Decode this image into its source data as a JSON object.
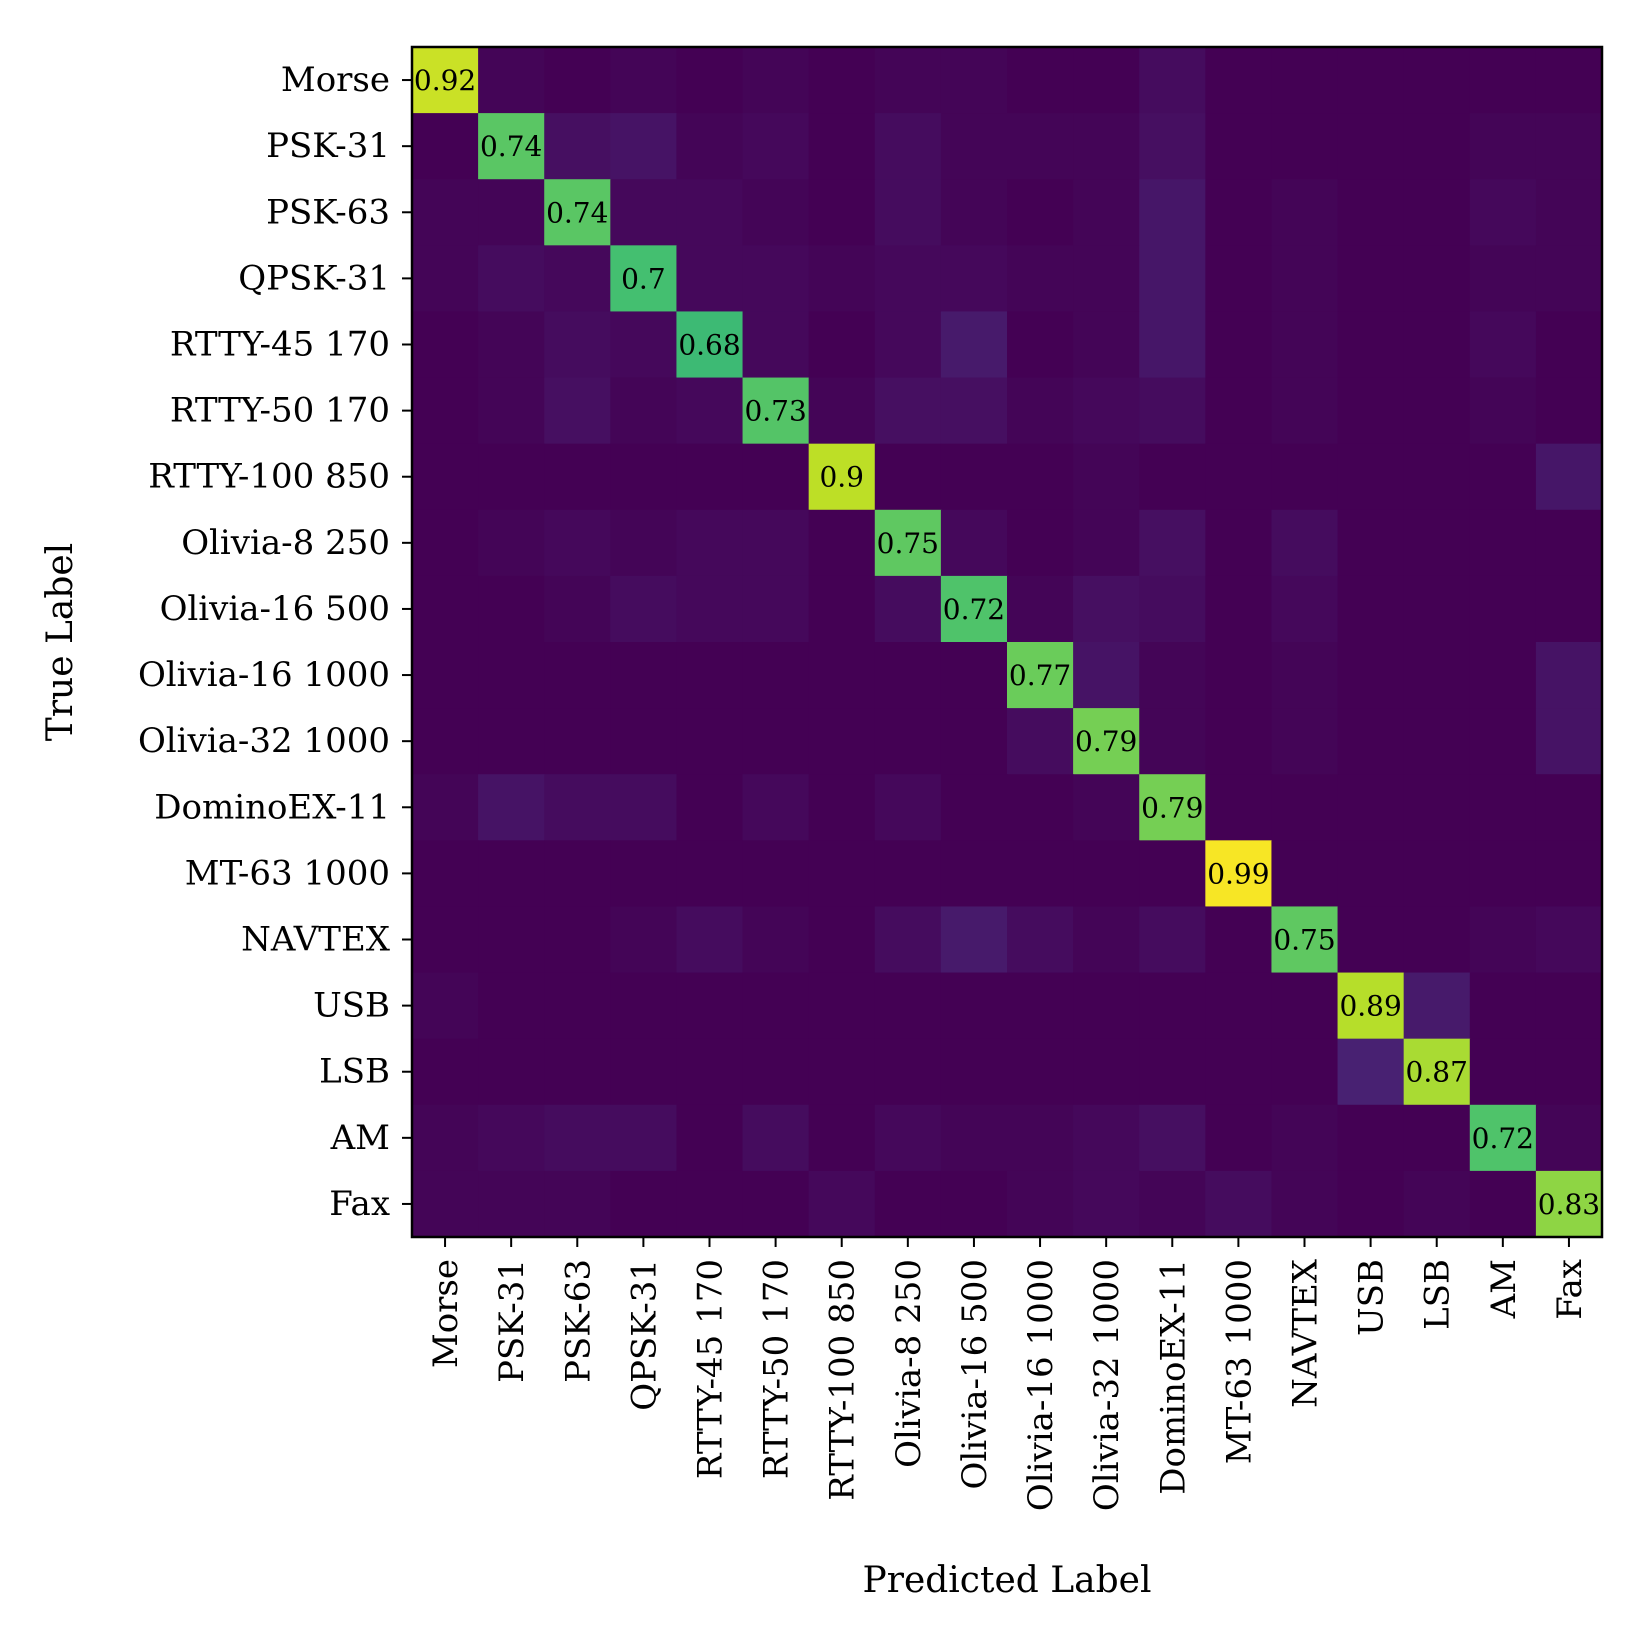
{
  "chart_data": {
    "type": "heatmap",
    "xlabel": "Predicted Label",
    "ylabel": "True Label",
    "colormap": "viridis",
    "vmin": 0,
    "vmax": 1,
    "classes": [
      "Morse",
      "PSK-31",
      "PSK-63",
      "QPSK-31",
      "RTTY-45 170",
      "RTTY-50 170",
      "RTTY-100 850",
      "Olivia-8 250",
      "Olivia-16 500",
      "Olivia-16 1000",
      "Olivia-32 1000",
      "DominoEX-11",
      "MT-63 1000",
      "NAVTEX",
      "USB",
      "LSB",
      "AM",
      "Fax"
    ],
    "diagonal_labels": [
      "0.92",
      "0.74",
      "0.74",
      "0.7",
      "0.68",
      "0.73",
      "0.9",
      "0.75",
      "0.72",
      "0.77",
      "0.79",
      "0.79",
      "0.99",
      "0.75",
      "0.89",
      "0.87",
      "0.72",
      "0.83"
    ],
    "matrix": [
      [
        0.92,
        0.01,
        0.0,
        0.01,
        0.0,
        0.01,
        0.0,
        0.01,
        0.01,
        0.0,
        0.0,
        0.03,
        0.0,
        0.0,
        0.0,
        0.0,
        0.0,
        0.0
      ],
      [
        0.0,
        0.74,
        0.04,
        0.05,
        0.01,
        0.02,
        0.0,
        0.03,
        0.01,
        0.01,
        0.01,
        0.04,
        0.0,
        0.0,
        0.0,
        0.0,
        0.01,
        0.01
      ],
      [
        0.01,
        0.01,
        0.74,
        0.02,
        0.02,
        0.01,
        0.0,
        0.03,
        0.01,
        0.0,
        0.01,
        0.06,
        0.0,
        0.01,
        0.0,
        0.0,
        0.02,
        0.01
      ],
      [
        0.01,
        0.03,
        0.02,
        0.7,
        0.02,
        0.02,
        0.01,
        0.02,
        0.02,
        0.01,
        0.01,
        0.06,
        0.0,
        0.01,
        0.0,
        0.0,
        0.01,
        0.01
      ],
      [
        0.0,
        0.01,
        0.03,
        0.02,
        0.68,
        0.02,
        0.0,
        0.02,
        0.07,
        0.0,
        0.01,
        0.06,
        0.0,
        0.01,
        0.0,
        0.0,
        0.02,
        0.0
      ],
      [
        0.0,
        0.01,
        0.04,
        0.01,
        0.02,
        0.73,
        0.01,
        0.04,
        0.04,
        0.01,
        0.02,
        0.03,
        0.0,
        0.01,
        0.0,
        0.0,
        0.01,
        0.0
      ],
      [
        0.0,
        0.0,
        0.0,
        0.0,
        0.0,
        0.0,
        0.9,
        0.0,
        0.0,
        0.0,
        0.01,
        0.0,
        0.0,
        0.0,
        0.0,
        0.0,
        0.0,
        0.06
      ],
      [
        0.0,
        0.01,
        0.02,
        0.01,
        0.02,
        0.02,
        0.0,
        0.75,
        0.02,
        0.0,
        0.01,
        0.04,
        0.0,
        0.03,
        0.0,
        0.0,
        0.0,
        0.0
      ],
      [
        0.0,
        0.0,
        0.01,
        0.03,
        0.02,
        0.02,
        0.0,
        0.03,
        0.72,
        0.01,
        0.04,
        0.03,
        0.0,
        0.02,
        0.0,
        0.0,
        0.0,
        0.0
      ],
      [
        0.0,
        0.0,
        0.0,
        0.0,
        0.0,
        0.0,
        0.0,
        0.0,
        0.0,
        0.77,
        0.05,
        0.01,
        0.0,
        0.01,
        0.0,
        0.0,
        0.0,
        0.05
      ],
      [
        0.0,
        0.0,
        0.0,
        0.0,
        0.0,
        0.0,
        0.0,
        0.0,
        0.0,
        0.03,
        0.79,
        0.01,
        0.0,
        0.01,
        0.0,
        0.0,
        0.0,
        0.05
      ],
      [
        0.01,
        0.05,
        0.03,
        0.03,
        0.0,
        0.02,
        0.0,
        0.02,
        0.0,
        0.0,
        0.01,
        0.79,
        0.0,
        0.0,
        0.0,
        0.0,
        0.0,
        0.0
      ],
      [
        0.0,
        0.0,
        0.0,
        0.0,
        0.0,
        0.0,
        0.0,
        0.0,
        0.0,
        0.0,
        0.0,
        0.0,
        0.99,
        0.0,
        0.0,
        0.0,
        0.0,
        0.0
      ],
      [
        0.0,
        0.0,
        0.0,
        0.01,
        0.03,
        0.01,
        0.0,
        0.03,
        0.07,
        0.03,
        0.01,
        0.03,
        0.0,
        0.75,
        0.0,
        0.0,
        0.01,
        0.02
      ],
      [
        0.01,
        0.0,
        0.0,
        0.0,
        0.0,
        0.0,
        0.0,
        0.0,
        0.0,
        0.0,
        0.0,
        0.0,
        0.0,
        0.0,
        0.89,
        0.07,
        0.0,
        0.0
      ],
      [
        0.0,
        0.0,
        0.0,
        0.0,
        0.0,
        0.0,
        0.0,
        0.0,
        0.0,
        0.0,
        0.0,
        0.0,
        0.0,
        0.0,
        0.09,
        0.87,
        0.0,
        0.0
      ],
      [
        0.01,
        0.02,
        0.03,
        0.03,
        0.0,
        0.03,
        0.0,
        0.02,
        0.01,
        0.01,
        0.02,
        0.04,
        0.0,
        0.01,
        0.0,
        0.0,
        0.72,
        0.01
      ],
      [
        0.01,
        0.01,
        0.01,
        0.0,
        0.0,
        0.0,
        0.02,
        0.0,
        0.0,
        0.01,
        0.02,
        0.01,
        0.03,
        0.01,
        0.0,
        0.01,
        0.0,
        0.83
      ]
    ]
  }
}
